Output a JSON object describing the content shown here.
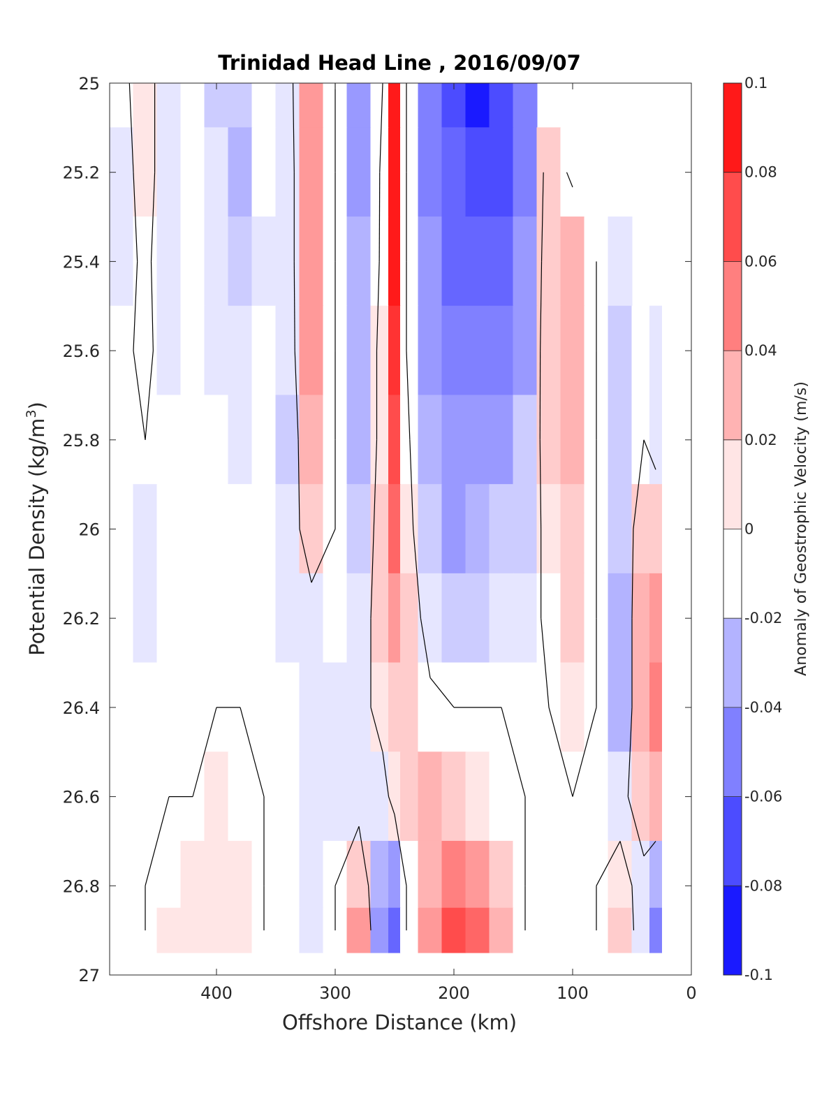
{
  "chart_data": {
    "type": "heatmap",
    "title": "Trinidad Head Line , 2016/09/07",
    "xlabel": "Offshore Distance (km)",
    "ylabel_main": "Potential Density (kg/m",
    "ylabel_sup": "3",
    "ylabel_close": ")",
    "colorbar_label": "Anomaly of Geostrophic Velocity (m/s)",
    "xlim": [
      490,
      0
    ],
    "ylim": [
      25,
      27
    ],
    "y_reversed": true,
    "x_reversed": true,
    "xticks": [
      400,
      300,
      200,
      100,
      0
    ],
    "xtick_labels": [
      "400",
      "300",
      "200",
      "100",
      "0"
    ],
    "yticks": [
      25,
      25.2,
      25.4,
      25.6,
      25.8,
      26,
      26.2,
      26.4,
      26.6,
      26.8,
      27
    ],
    "ytick_labels": [
      "25",
      "25.2",
      "25.4",
      "25.6",
      "25.8",
      "26",
      "26.2",
      "26.4",
      "26.6",
      "26.8",
      "27"
    ],
    "clim": [
      -0.1,
      0.1
    ],
    "colorbar_ticks": [
      0.1,
      0.08,
      0.06,
      0.04,
      0.02,
      0,
      -0.02,
      -0.04,
      -0.06,
      -0.08,
      -0.1
    ],
    "colorbar_tick_labels": [
      "0.1",
      "0.08",
      "0.06",
      "0.04",
      "0.02",
      "0",
      "-0.02",
      "-0.04",
      "-0.06",
      "-0.08",
      "-0.1"
    ],
    "contour_interval": 0.01,
    "zero_contour_color": "#000000",
    "colormap": {
      "negative": "#0000ff",
      "zero": "#ffffff",
      "positive": "#ff0000"
    },
    "x": [
      480,
      460,
      440,
      420,
      400,
      380,
      360,
      340,
      320,
      300,
      280,
      260,
      250,
      240,
      220,
      200,
      180,
      160,
      140,
      120,
      100,
      80,
      60,
      40,
      30
    ],
    "y": [
      25.0,
      25.2,
      25.4,
      25.6,
      25.8,
      26.0,
      26.2,
      26.4,
      26.6,
      26.8,
      26.9
    ],
    "z": [
      [
        -0.005,
        0.01,
        -0.015,
        -0.005,
        -0.02,
        -0.025,
        0.0,
        -0.01,
        0.035,
        0.0,
        -0.04,
        0.0,
        0.085,
        0.0,
        -0.055,
        -0.075,
        -0.09,
        -0.075,
        -0.055,
        null,
        null,
        null,
        null,
        null,
        null
      ],
      [
        -0.01,
        0.01,
        -0.015,
        -0.005,
        -0.015,
        -0.03,
        -0.005,
        -0.015,
        0.04,
        0.0,
        -0.035,
        0.005,
        0.09,
        0.0,
        -0.05,
        -0.065,
        -0.075,
        -0.07,
        -0.05,
        0.015,
        -0.005,
        null,
        null,
        null,
        null
      ],
      [
        -0.01,
        0.005,
        -0.015,
        0.0,
        -0.015,
        -0.025,
        -0.01,
        -0.015,
        0.04,
        0.0,
        -0.03,
        0.005,
        0.09,
        0.0,
        -0.045,
        -0.06,
        -0.06,
        -0.06,
        -0.045,
        0.02,
        0.025,
        0.0,
        -0.015,
        null,
        null
      ],
      [
        -0.005,
        0.005,
        -0.01,
        0.0,
        -0.01,
        -0.015,
        -0.005,
        -0.015,
        0.035,
        0.0,
        -0.03,
        0.01,
        0.08,
        0.0,
        -0.04,
        -0.05,
        -0.05,
        -0.05,
        -0.035,
        0.02,
        0.03,
        0.0,
        -0.02,
        0.0,
        -0.015
      ],
      [
        0.0,
        0.0,
        0.0,
        0.0,
        -0.005,
        -0.01,
        -0.005,
        -0.02,
        0.025,
        0.0,
        -0.03,
        0.01,
        0.07,
        0.005,
        -0.03,
        -0.04,
        -0.04,
        -0.035,
        -0.025,
        0.015,
        0.025,
        0.0,
        -0.025,
        0.0,
        -0.01
      ],
      [
        0.0,
        -0.01,
        0.0,
        0.0,
        0.0,
        0.0,
        0.0,
        -0.015,
        0.015,
        0.0,
        -0.025,
        0.015,
        0.055,
        0.01,
        -0.025,
        -0.035,
        -0.03,
        -0.025,
        -0.02,
        0.01,
        0.02,
        0.0,
        -0.025,
        0.02,
        0.02
      ],
      [
        0.0,
        -0.01,
        0.0,
        0.0,
        0.0,
        0.0,
        0.0,
        -0.01,
        -0.01,
        -0.005,
        -0.015,
        0.015,
        0.035,
        0.015,
        -0.01,
        -0.02,
        -0.02,
        -0.015,
        -0.01,
        0.005,
        0.015,
        0.0,
        -0.03,
        0.03,
        0.04
      ],
      [
        0.0,
        0.0,
        0.0,
        0.0,
        0.0,
        0.0,
        0.0,
        -0.005,
        -0.01,
        -0.01,
        -0.01,
        0.01,
        0.02,
        0.02,
        0.005,
        0.0,
        0.0,
        0.0,
        0.0,
        0.0,
        0.01,
        0.0,
        -0.03,
        0.03,
        0.05
      ],
      [
        0.0,
        0.0,
        0.0,
        0.0,
        0.01,
        0.005,
        0.0,
        0.0,
        -0.01,
        -0.01,
        -0.01,
        -0.01,
        0.01,
        0.02,
        0.025,
        0.02,
        0.01,
        0.005,
        0.0,
        0.0,
        0.0,
        0.0,
        -0.01,
        0.02,
        0.03
      ],
      [
        0.0,
        0.0,
        0.005,
        0.01,
        0.01,
        0.01,
        0.0,
        0.0,
        -0.01,
        0.0,
        0.02,
        -0.03,
        -0.04,
        0.0,
        0.03,
        0.05,
        0.04,
        0.02,
        0.0,
        0.0,
        0.0,
        0.0,
        0.01,
        -0.01,
        -0.03
      ],
      [
        0.0,
        0.0,
        0.01,
        0.01,
        0.01,
        0.01,
        0.0,
        0.0,
        -0.015,
        0.0,
        0.04,
        -0.04,
        -0.06,
        0.0,
        0.04,
        0.065,
        0.06,
        0.03,
        0.0,
        0.0,
        0.0,
        0.0,
        0.02,
        -0.015,
        -0.05
      ]
    ]
  }
}
